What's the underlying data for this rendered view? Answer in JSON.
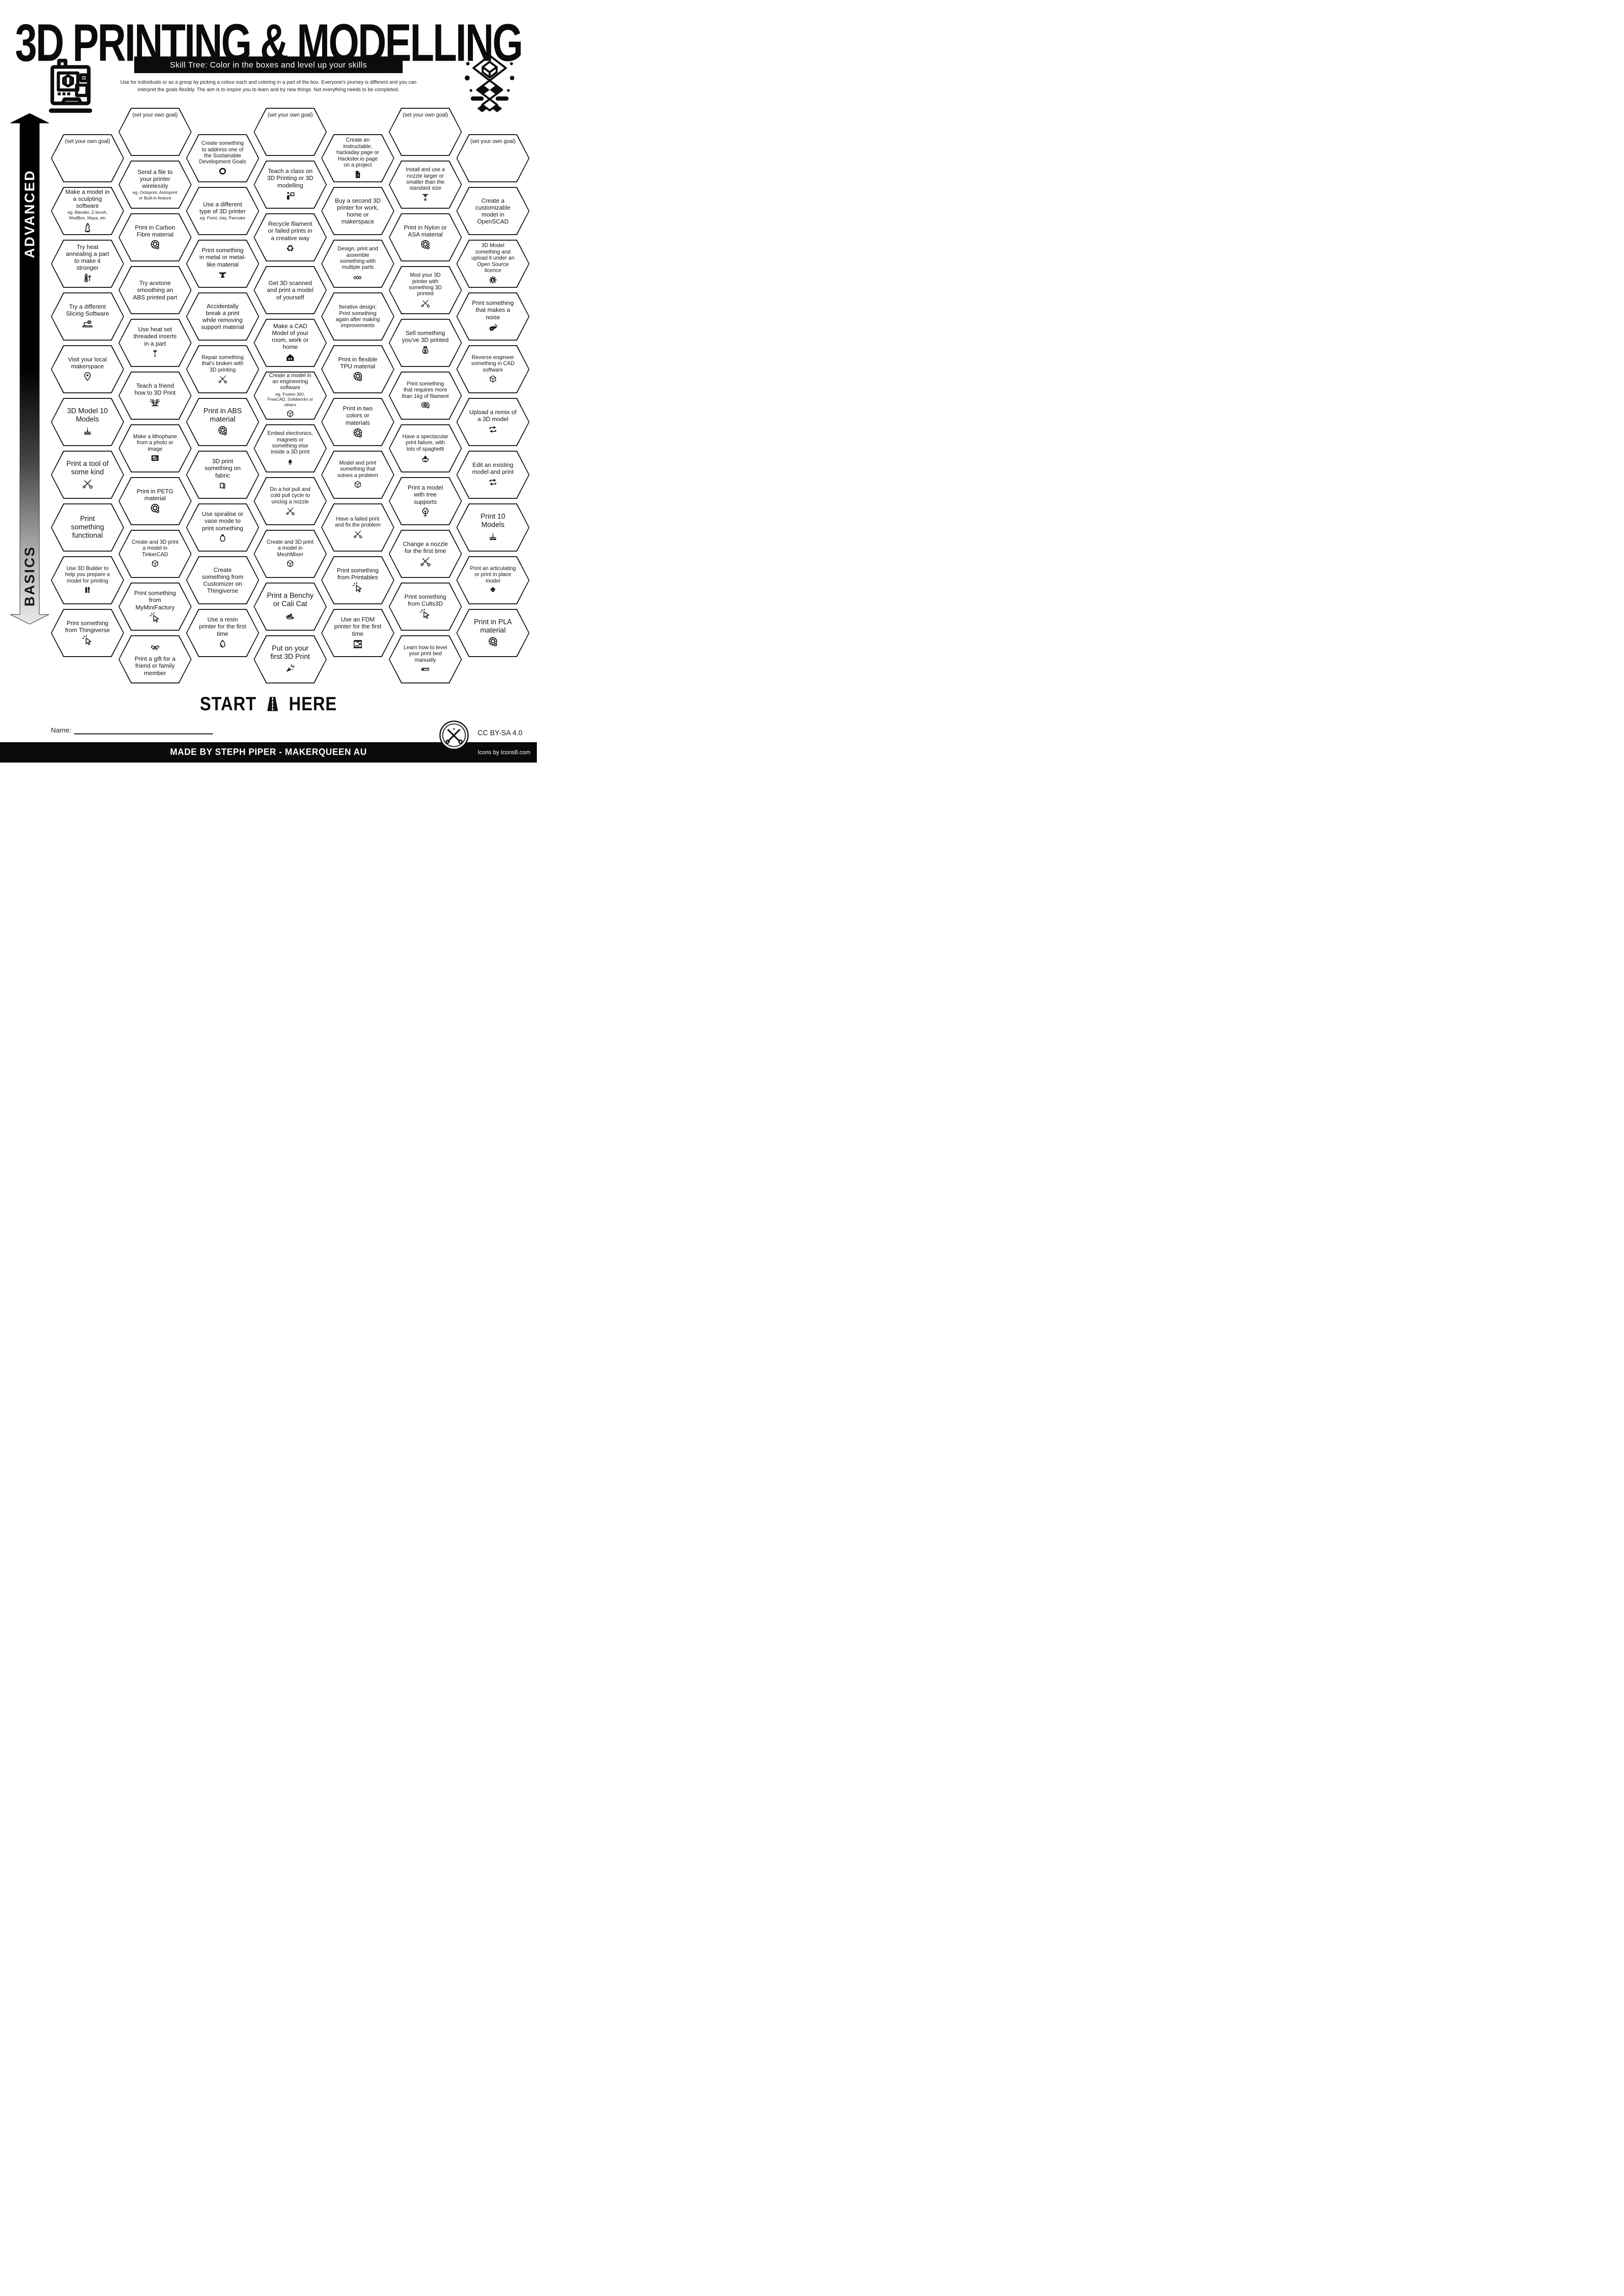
{
  "page": {
    "title": "3D PRINTING & MODELLING",
    "subtitle": "Skill Tree:  Color in the boxes and level up your skills",
    "intro_line1": "Use for individuals or as a group by picking a colour each and coloring in a part of the box.  Everyone's journey is different and you can",
    "intro_line2": "interpret the goals flexibly.  The aim is to inspire you to learn and try new things. Not everything needs to be completed.",
    "advanced_label": "ADVANCED",
    "basics_label": "BASICS",
    "start_label": "START",
    "here_label": "HERE",
    "name_label": "Name:",
    "license_label": "CC BY-SA 4.0",
    "credit_label": "MADE BY STEPH PIPER  -  MAKERQUEEN AU",
    "icons_credit_label": "Icons by Icons8.com"
  },
  "colors": {
    "ink": "#141414",
    "bar": "#0c0c0c",
    "white": "#ffffff"
  },
  "goal_label": "(set your own goal)",
  "columns": [
    {
      "id": "column-1",
      "hexes": [
        {
          "goal": true
        },
        {
          "label": "Make a model in a sculpting software",
          "sub": "eg. Blender, Z-brush, MudBox, Maya, etc",
          "icon": "statue"
        },
        {
          "label": "Try heat annealing a part to make it stronger",
          "icon": "thermo"
        },
        {
          "label": "Try a different Slicing Software",
          "icon": "laptopgear"
        },
        {
          "label": "Visit your local makerspace",
          "icon": "pin"
        },
        {
          "label": "3D Model 10 Models",
          "icon": "cake",
          "size": "lg"
        },
        {
          "label": "Print a tool of some kind",
          "icon": "tools",
          "size": "lg"
        },
        {
          "label": "Print something functional",
          "size": "lg"
        },
        {
          "label": "Use 3D Builder to help you prepare a model for printing",
          "icon": "builder",
          "size": "sm"
        },
        {
          "label": "Print something from Thingiverse",
          "icon": "cursor"
        }
      ]
    },
    {
      "id": "column-2",
      "hexes": [
        {
          "goal": true
        },
        {
          "label": "Send a file to your printer wirelessly",
          "sub": "eg. Octoprint, Astroprint or Built-in feature"
        },
        {
          "label": "Print in Carbon Fibre material",
          "icon": "spool"
        },
        {
          "label": "Try acetone smoothing an ABS printed part"
        },
        {
          "label": "Use heat set threaded inserts in a part",
          "icon": "screw"
        },
        {
          "label": "Teach a friend how to 3D Print",
          "icon": "friends"
        },
        {
          "label": "Make a lithophane from a photo or image",
          "icon": "picture",
          "size": "sm"
        },
        {
          "label": "Print in PETG material",
          "icon": "spool"
        },
        {
          "label": "Create and 3D print a model in TinkerCAD",
          "icon": "cube",
          "size": "sm"
        },
        {
          "label": "Print something from MyMiniFactory",
          "icon": "cursor"
        },
        {
          "label": "Print a gift for a friend or family member",
          "icon": "bow",
          "icon_pos": "top"
        }
      ]
    },
    {
      "id": "column-3",
      "hexes": [
        {
          "label": "Create something to address one of the Sustainable Development Goals",
          "icon": "sdg",
          "size": "sm"
        },
        {
          "label": "Use a different type of 3D printer",
          "sub": "eg. Food, clay, Pancake"
        },
        {
          "label": "Print something in metal or metal-like material",
          "icon": "anvil"
        },
        {
          "label": "Accidentally break a print while removing support material"
        },
        {
          "label": "Repair something that's broken with 3D printing",
          "icon": "tools",
          "size": "sm"
        },
        {
          "label": "Print in ABS material",
          "icon": "spool",
          "size": "lg"
        },
        {
          "label": "3D print something on fabric",
          "icon": "fabric"
        },
        {
          "label": "Use spiralise or vase mode to print something",
          "icon": "vase"
        },
        {
          "label": "Create something from Customizer on Thingiverse"
        },
        {
          "label": "Use a resin printer for the first time",
          "icon": "drop"
        }
      ]
    },
    {
      "id": "column-4",
      "hexes": [
        {
          "goal": true
        },
        {
          "label": "Teach a class on 3D Printing or 3D modelling",
          "icon": "teacher"
        },
        {
          "label": "Recycle filament or failed prints in a creative way",
          "icon": "recycle"
        },
        {
          "label": "Get 3D scanned and print a model of yourself"
        },
        {
          "label": "Make a CAD Model of your room, work or home",
          "icon": "house"
        },
        {
          "label": "Create a model in an engineering software",
          "sub": "eg. Fusion 360, FreeCAD, Solidworks or others",
          "icon": "cube",
          "size": "sm"
        },
        {
          "label": "Embed electronics, magnets or something else inside a 3D print",
          "icon": "led",
          "size": "sm"
        },
        {
          "label": "Do a hot pull and cold pull cycle to unclog a nozzle",
          "icon": "tools",
          "size": "sm"
        },
        {
          "label": "Create and 3D print a model in MeshMixer",
          "icon": "cube",
          "size": "sm"
        },
        {
          "label": "Print a Benchy or Cali Cat",
          "icon": "boat",
          "size": "lg"
        },
        {
          "label": "Put on your first 3D Print",
          "icon": "party",
          "size": "lg"
        }
      ]
    },
    {
      "id": "column-5",
      "hexes": [
        {
          "label": "Create an instructable, hackaday page or Hackster.io page on a project",
          "icon": "doc",
          "size": "sm"
        },
        {
          "label": "Buy a second 3D printer for work, home or makerspace"
        },
        {
          "label": "Design, print and assemble something with multiple parts",
          "icon": "cubes3",
          "size": "sm"
        },
        {
          "label": "Iterative design: Print something again after making improvements",
          "size": "sm"
        },
        {
          "label": "Print in flexible TPU material",
          "icon": "spool"
        },
        {
          "label": "Print in two colors or materials",
          "icon": "spool"
        },
        {
          "label": "Model and print something that solves a problem",
          "icon": "cube",
          "size": "sm"
        },
        {
          "label": "Have a failed print and fix the problem",
          "icon": "tools",
          "size": "sm"
        },
        {
          "label": "Print something from Printables",
          "icon": "cursor"
        },
        {
          "label": "Use an FDM printer for the first time",
          "icon": "fdm"
        }
      ]
    },
    {
      "id": "column-6",
      "hexes": [
        {
          "goal": true
        },
        {
          "label": "Install and use a nozzle larger or smaller than the standard size",
          "icon": "nozzle",
          "size": "sm"
        },
        {
          "label": "Print in Nylon or ASA material",
          "icon": "spool"
        },
        {
          "label": "Mod your 3D printer with something 3D printed",
          "icon": "tools",
          "size": "sm"
        },
        {
          "label": "Sell something you've 3D printed",
          "icon": "moneybag"
        },
        {
          "label": "Print something that requires more than 1kg of filament",
          "icon": "spool2",
          "size": "sm"
        },
        {
          "label": "Have a spectacular print failure, with lots of spaghetti",
          "icon": "spaghetti",
          "size": "sm"
        },
        {
          "label": "Print a model with tree supports",
          "icon": "tree"
        },
        {
          "label": "Change a nozzle for the first time",
          "icon": "tools"
        },
        {
          "label": "Print something from Cults3D",
          "icon": "cursor"
        },
        {
          "label": "Learn how to level your print bed manually",
          "icon": "ruler",
          "size": "sm"
        }
      ]
    },
    {
      "id": "column-7",
      "hexes": [
        {
          "goal": true
        },
        {
          "label": "Create a customizable model in OpenSCAD"
        },
        {
          "label": "3D Model something and upload it under an Open Source licence",
          "icon": "gear",
          "size": "sm"
        },
        {
          "label": "Print something that makes a noise",
          "icon": "whistle"
        },
        {
          "label": "Reverse engineer something in CAD software",
          "icon": "cube",
          "size": "sm"
        },
        {
          "label": "Upload a remix of a 3D model",
          "icon": "swap"
        },
        {
          "label": "Edit an existing model and print",
          "icon": "swap"
        },
        {
          "label": "Print 10 Models",
          "icon": "cake",
          "size": "lg"
        },
        {
          "label": "Print an articulating or print in place model",
          "icon": "dragon",
          "size": "sm"
        },
        {
          "label": "Print in PLA material",
          "icon": "spool",
          "size": "lg"
        }
      ]
    }
  ]
}
